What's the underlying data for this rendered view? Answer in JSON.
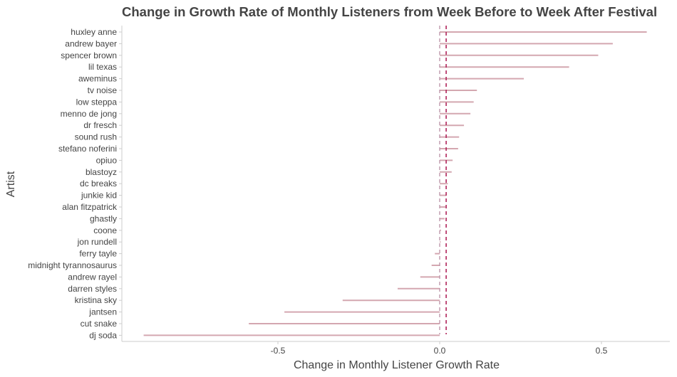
{
  "chart_data": {
    "type": "bar",
    "orientation": "horizontal",
    "style": "lollipop-segments",
    "title": "Change in Growth Rate of Monthly Listeners from Week Before to Week After Festival",
    "xlabel": "Change in Monthly Listener Growth Rate",
    "ylabel": "Artist",
    "xlim": [
      -0.98,
      0.72
    ],
    "xticks": [
      -0.5,
      0.0,
      0.5
    ],
    "xtick_labels": [
      "-0.5",
      "0.0",
      "0.5"
    ],
    "reference_lines": [
      0.0,
      0.02
    ],
    "grid": false,
    "colors": {
      "bar": "#d4a7b0",
      "ref_zero": "#b890a5",
      "ref_mean": "#b0245a",
      "axis": "#cccccc"
    },
    "categories": [
      "huxley anne",
      "andrew bayer",
      "spencer brown",
      "lil texas",
      "aweminus",
      "tv noise",
      "low steppa",
      "menno de jong",
      "dr fresch",
      "sound rush",
      "stefano noferini",
      "opiuo",
      "blastoyz",
      "dc breaks",
      "junkie kid",
      "alan fitzpatrick",
      "ghastly",
      "coone",
      "jon rundell",
      "ferry tayle",
      "midnight tyrannosaurus",
      "andrew rayel",
      "darren styles",
      "kristina sky",
      "jantsen",
      "cut snake",
      "dj soda"
    ],
    "values": [
      0.64,
      0.535,
      0.49,
      0.4,
      0.26,
      0.115,
      0.105,
      0.095,
      0.075,
      0.06,
      0.057,
      0.04,
      0.037,
      0.025,
      0.02,
      0.018,
      0.015,
      0.004,
      0.003,
      -0.015,
      -0.025,
      -0.06,
      -0.13,
      -0.3,
      -0.48,
      -0.59,
      -0.915
    ]
  }
}
